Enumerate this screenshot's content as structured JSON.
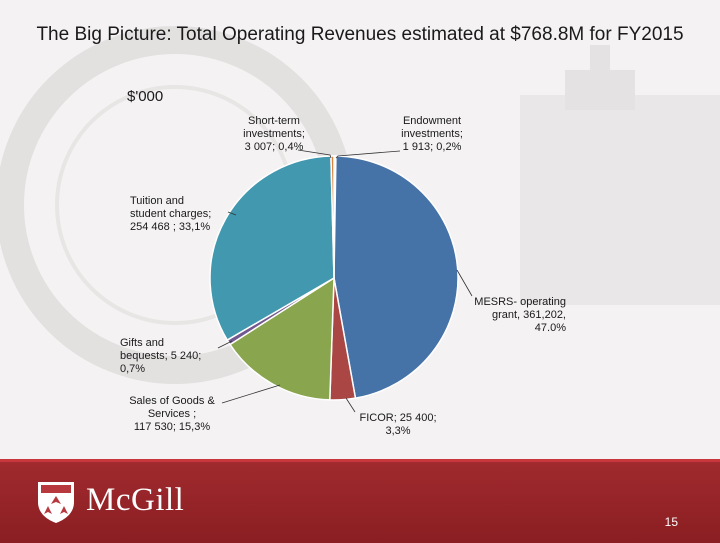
{
  "slide": {
    "title": "The Big Picture:  Total Operating Revenues estimated at $768.8M for FY2015",
    "unit_label": "$'000",
    "page_number": "15",
    "logo_text": "McGill"
  },
  "chart_data": {
    "type": "pie",
    "slices": [
      {
        "label": "Endowment investments; 1 913; 0,2%",
        "value": 1913,
        "color": "#d9d9d9"
      },
      {
        "label": "MESRS- operating grant, 361,202, 47.0%",
        "value": 361202,
        "color": "#4572a7"
      },
      {
        "label": "FICOR; 25 400; 3,3%",
        "value": 25400,
        "color": "#aa4643"
      },
      {
        "label": "Sales of Goods & Services ; 117 530; 15,3%",
        "value": 117530,
        "color": "#89a54e"
      },
      {
        "label": "Gifts and bequests; 5 240; 0,7%",
        "value": 5240,
        "color": "#71588f"
      },
      {
        "label": "Tuition and student charges; 254 468 ; 33,1%",
        "value": 254468,
        "color": "#4198af"
      },
      {
        "label": "Short-term investments; 3 007; 0,4%",
        "value": 3007,
        "color": "#db843d"
      }
    ],
    "display_labels": {
      "short_term": [
        "Short-term",
        "investments;",
        "3 007; 0,4%"
      ],
      "endowment": [
        "Endowment",
        "investments;",
        "1 913; 0,2%"
      ],
      "tuition": [
        "Tuition and",
        "student charges;",
        "254 468 ; 33,1%"
      ],
      "mesrs": [
        "MESRS- operating",
        "grant, 361,202,",
        "47.0%"
      ],
      "gifts": [
        "Gifts and",
        "bequests; 5 240;",
        "0,7%"
      ],
      "sales": [
        "Sales of Goods &",
        "Services ;",
        "117 530; 15,3%"
      ],
      "ficor": [
        "FICOR; 25 400;",
        "3,3%"
      ]
    },
    "start_angle_deg": 0,
    "direction": "clockwise"
  }
}
